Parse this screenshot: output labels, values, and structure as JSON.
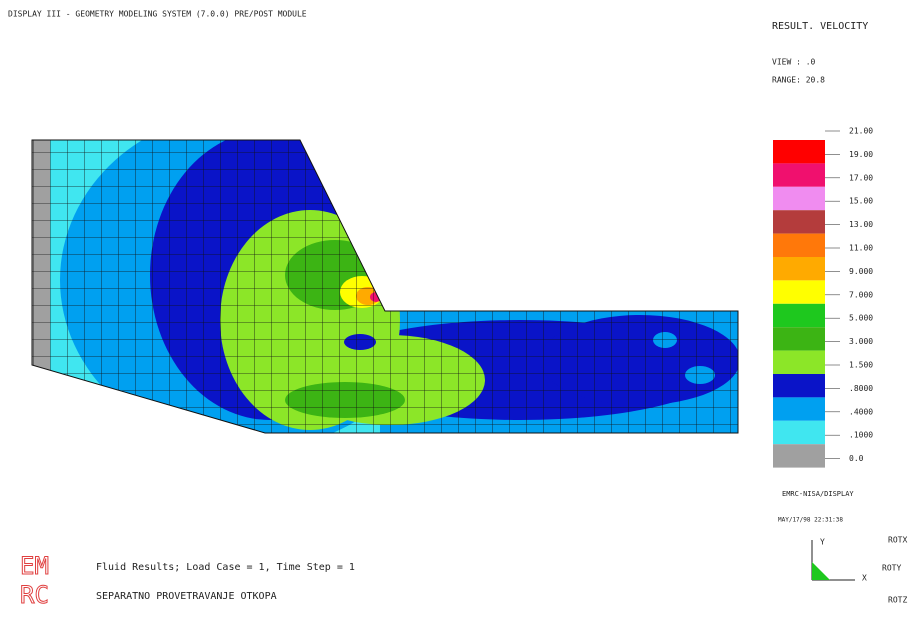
{
  "header": {
    "title": "DISPLAY III - GEOMETRY MODELING SYSTEM (7.0.0)  PRE/POST MODULE"
  },
  "result_panel": {
    "title": "RESULT. VELOCITY",
    "view": "VIEW : .0",
    "range": "RANGE: 20.8"
  },
  "legend": {
    "labels": [
      "21.00",
      "19.00",
      "17.00",
      "15.00",
      "13.00",
      "11.00",
      "9.000",
      "7.000",
      "5.000",
      "3.000",
      "1.500",
      ".8000",
      ".4000",
      ".1000",
      "0.0"
    ],
    "colors": [
      "#ff0000",
      "#f0106e",
      "#f08cf0",
      "#b43c3c",
      "#ff780a",
      "#ffaa00",
      "#ffff00",
      "#1ec81e",
      "#3cb414",
      "#8ce628",
      "#0a14c8",
      "#00a0f0",
      "#40e6f0",
      "#a0a0a0"
    ]
  },
  "info": {
    "program": "EMRC-NISA/DISPLAY",
    "date": "MAY/17/98 22:31:38"
  },
  "triad": {
    "y": "Y",
    "x": "X",
    "rotx": "ROTX",
    "roty": "ROTY",
    "rotz": "ROTZ"
  },
  "footer": {
    "logo_top": "EM",
    "logo_bottom": "RC",
    "line1": "Fluid Results; Load Case =  1,  Time Step =  1",
    "line2": "SEPARATNO PROVETRAVANJE OTKOPA"
  }
}
